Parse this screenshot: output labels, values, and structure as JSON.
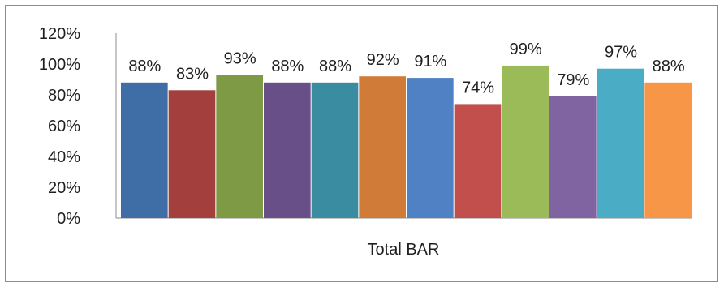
{
  "chart_data": {
    "type": "bar",
    "categories": [
      "Total BAR"
    ],
    "series": [
      {
        "values": [
          88
        ],
        "label": "88%",
        "color": "#3f6ea6"
      },
      {
        "values": [
          83
        ],
        "label": "83%",
        "color": "#a3403d"
      },
      {
        "values": [
          93
        ],
        "label": "93%",
        "color": "#7f9a45"
      },
      {
        "values": [
          88
        ],
        "label": "88%",
        "color": "#684f87"
      },
      {
        "values": [
          88
        ],
        "label": "88%",
        "color": "#3a8ca1"
      },
      {
        "values": [
          92
        ],
        "label": "92%",
        "color": "#d07b38"
      },
      {
        "values": [
          91
        ],
        "label": "91%",
        "color": "#4f81c4"
      },
      {
        "values": [
          74
        ],
        "label": "74%",
        "color": "#c24f4c"
      },
      {
        "values": [
          99
        ],
        "label": "99%",
        "color": "#9bbb59"
      },
      {
        "values": [
          79
        ],
        "label": "79%",
        "color": "#8064a2"
      },
      {
        "values": [
          97
        ],
        "label": "97%",
        "color": "#4bacc6"
      },
      {
        "values": [
          88
        ],
        "label": "88%",
        "color": "#f79646"
      }
    ],
    "ylim": [
      0,
      120
    ],
    "yticks": [
      "0%",
      "20%",
      "40%",
      "60%",
      "80%",
      "100%",
      "120%"
    ],
    "grid": false,
    "legend": "none"
  }
}
